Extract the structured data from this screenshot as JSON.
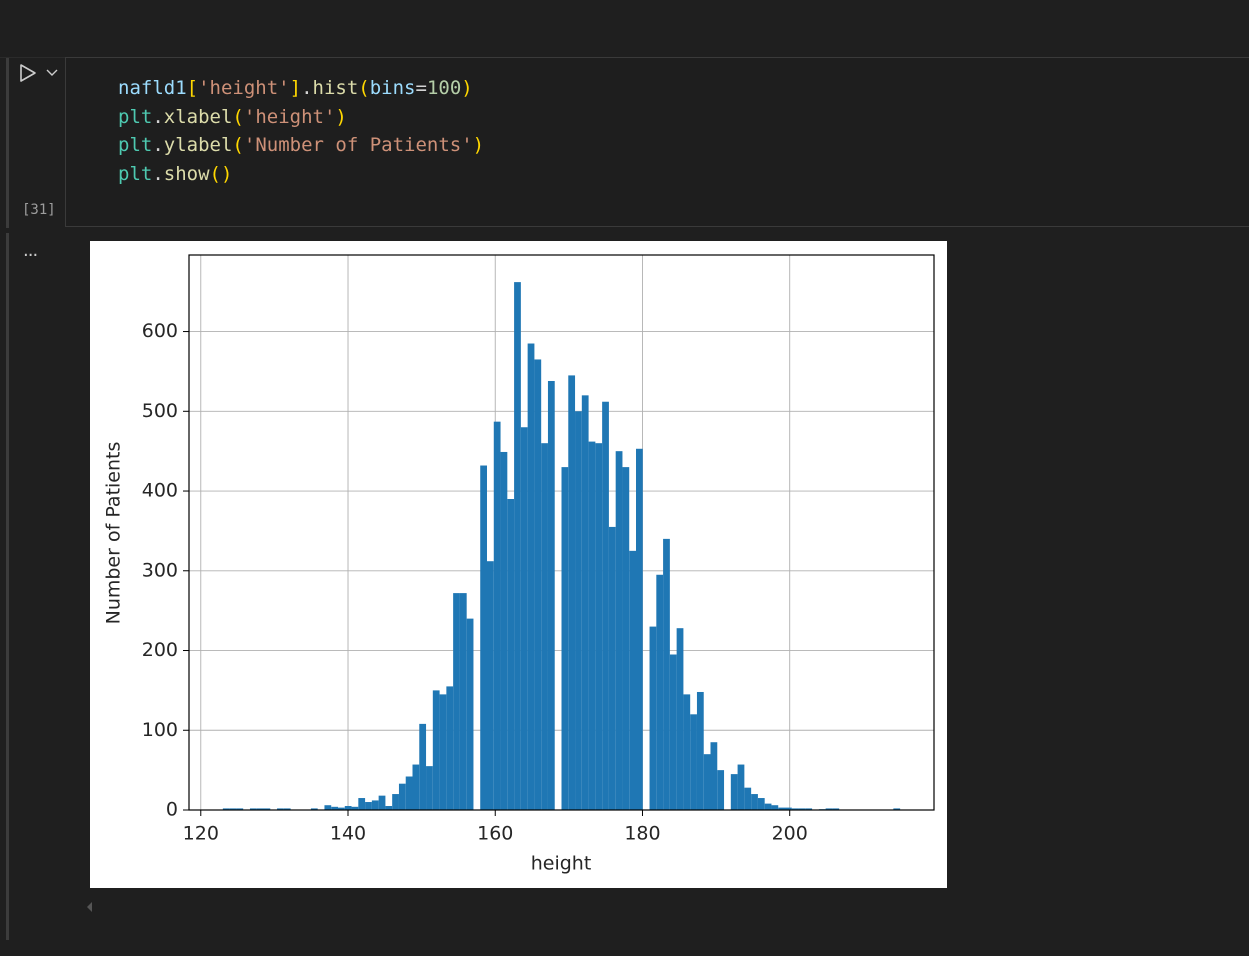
{
  "code": {
    "lines": [
      [
        {
          "text": "nafld1",
          "color": "#9cdcfe"
        },
        {
          "text": "[",
          "color": "#ffd700"
        },
        {
          "text": "'height'",
          "color": "#ce9178"
        },
        {
          "text": "]",
          "color": "#ffd700"
        },
        {
          "text": ".",
          "color": "#d4d4d4"
        },
        {
          "text": "hist",
          "color": "#dcdcaa"
        },
        {
          "text": "(",
          "color": "#ffd700"
        },
        {
          "text": "bins",
          "color": "#9cdcfe"
        },
        {
          "text": "=",
          "color": "#d4d4d4"
        },
        {
          "text": "100",
          "color": "#b5cea8"
        },
        {
          "text": ")",
          "color": "#ffd700"
        }
      ],
      [
        {
          "text": "plt",
          "color": "#4ec9b0"
        },
        {
          "text": ".",
          "color": "#d4d4d4"
        },
        {
          "text": "xlabel",
          "color": "#dcdcaa"
        },
        {
          "text": "(",
          "color": "#ffd700"
        },
        {
          "text": "'height'",
          "color": "#ce9178"
        },
        {
          "text": ")",
          "color": "#ffd700"
        }
      ],
      [
        {
          "text": "plt",
          "color": "#4ec9b0"
        },
        {
          "text": ".",
          "color": "#d4d4d4"
        },
        {
          "text": "ylabel",
          "color": "#dcdcaa"
        },
        {
          "text": "(",
          "color": "#ffd700"
        },
        {
          "text": "'Number of Patients'",
          "color": "#ce9178"
        },
        {
          "text": ")",
          "color": "#ffd700"
        }
      ],
      [
        {
          "text": "plt",
          "color": "#4ec9b0"
        },
        {
          "text": ".",
          "color": "#d4d4d4"
        },
        {
          "text": "show",
          "color": "#dcdcaa"
        },
        {
          "text": "()",
          "color": "#ffd700"
        }
      ]
    ],
    "execution_count": "[31]",
    "output_marker": "..."
  },
  "chart_data": {
    "type": "histogram",
    "x_label": "height",
    "y_label": "Number of Patients",
    "color": "#1f77b4",
    "grid": true,
    "bins": [
      123,
      123.92,
      124.84,
      125.76,
      126.68,
      127.6,
      128.52,
      129.44,
      130.36,
      131.28,
      132.2,
      133.12,
      134.04,
      134.96,
      135.88,
      136.8,
      137.72,
      138.64,
      139.56,
      140.48,
      141.4,
      142.32,
      143.24,
      144.16,
      145.08,
      146,
      146.92,
      147.84,
      148.76,
      149.68,
      150.6,
      151.52,
      152.44,
      153.36,
      154.28,
      155.2,
      156.12,
      157.04,
      157.96,
      158.88,
      159.8,
      160.72,
      161.64,
      162.56,
      163.48,
      164.4,
      165.32,
      166.24,
      167.16,
      168.08,
      169,
      169.92,
      170.84,
      171.76,
      172.68,
      173.6,
      174.52,
      175.44,
      176.36,
      177.28,
      178.2,
      179.12,
      180.04,
      180.96,
      181.88,
      182.8,
      183.72,
      184.64,
      185.56,
      186.48,
      187.4,
      188.32,
      189.24,
      190.16,
      191.08,
      192,
      192.92,
      193.84,
      194.76,
      195.68,
      196.6,
      197.52,
      198.44,
      199.36,
      200.28,
      201.2,
      202.12,
      203.04,
      203.96,
      204.88,
      205.8,
      206.72,
      207.64,
      208.56,
      209.48,
      210.4,
      211.32,
      212.24,
      213.16,
      214.08,
      215
    ],
    "values": [
      2,
      2,
      2,
      0,
      2,
      2,
      2,
      0,
      2,
      2,
      0,
      0,
      0,
      2,
      0,
      6,
      4,
      3,
      5,
      4,
      15,
      10,
      12,
      18,
      5,
      20,
      33,
      42,
      57,
      108,
      55,
      150,
      145,
      155,
      272,
      272,
      240,
      0,
      432,
      312,
      487,
      449,
      390,
      662,
      480,
      585,
      565,
      460,
      538,
      0,
      430,
      545,
      500,
      520,
      462,
      460,
      512,
      355,
      450,
      430,
      325,
      453,
      0,
      230,
      295,
      340,
      195,
      228,
      145,
      120,
      148,
      70,
      85,
      50,
      0,
      45,
      57,
      28,
      20,
      15,
      8,
      6,
      3,
      3,
      2,
      2,
      2,
      0,
      1,
      2,
      2,
      0,
      0,
      0,
      0,
      0,
      0,
      0,
      0,
      2
    ],
    "xlim": [
      118.4,
      219.6
    ],
    "ylim": [
      0,
      696
    ],
    "xticks": [
      120,
      140,
      160,
      180,
      200
    ],
    "yticks": [
      0,
      100,
      200,
      300,
      400,
      500,
      600
    ]
  }
}
